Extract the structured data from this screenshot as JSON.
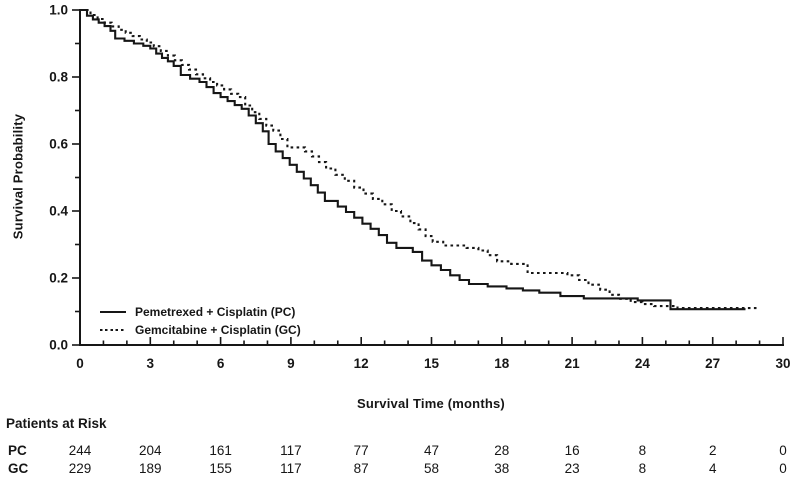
{
  "figure": {
    "background": "#ffffff",
    "ink_color": "#161616"
  },
  "chart_data": {
    "type": "line",
    "subtype": "kaplan-meier-step",
    "title": "",
    "xlabel": "Survival Time (months)",
    "ylabel": "Survival Probability",
    "xlim": [
      0,
      30
    ],
    "ylim": [
      0.0,
      1.0
    ],
    "x_major_ticks": [
      0,
      3,
      6,
      9,
      12,
      15,
      18,
      21,
      24,
      27,
      30
    ],
    "x_minor_step": 1,
    "y_major_ticks": [
      0.0,
      0.2,
      0.4,
      0.6,
      0.8,
      1.0
    ],
    "y_minor_step": 0.1,
    "grid": false,
    "legend_position": "inside-bottom-left",
    "series": [
      {
        "name": "Pemetrexed + Cisplatin (PC)",
        "style": "solid",
        "points": [
          [
            0,
            1.0
          ],
          [
            0.3,
            0.983
          ],
          [
            0.55,
            0.972
          ],
          [
            0.8,
            0.962
          ],
          [
            1.05,
            0.952
          ],
          [
            1.3,
            0.938
          ],
          [
            1.5,
            0.915
          ],
          [
            1.9,
            0.908
          ],
          [
            2.3,
            0.9
          ],
          [
            2.7,
            0.893
          ],
          [
            3.0,
            0.885
          ],
          [
            3.25,
            0.87
          ],
          [
            3.5,
            0.857
          ],
          [
            3.75,
            0.847
          ],
          [
            4.0,
            0.833
          ],
          [
            4.3,
            0.806
          ],
          [
            4.7,
            0.795
          ],
          [
            5.1,
            0.785
          ],
          [
            5.4,
            0.77
          ],
          [
            5.7,
            0.752
          ],
          [
            6.0,
            0.74
          ],
          [
            6.3,
            0.728
          ],
          [
            6.6,
            0.716
          ],
          [
            6.9,
            0.705
          ],
          [
            7.2,
            0.685
          ],
          [
            7.5,
            0.662
          ],
          [
            7.8,
            0.638
          ],
          [
            8.05,
            0.6
          ],
          [
            8.35,
            0.578
          ],
          [
            8.65,
            0.558
          ],
          [
            8.95,
            0.538
          ],
          [
            9.25,
            0.517
          ],
          [
            9.55,
            0.497
          ],
          [
            9.85,
            0.477
          ],
          [
            10.15,
            0.455
          ],
          [
            10.45,
            0.43
          ],
          [
            11.0,
            0.413
          ],
          [
            11.35,
            0.397
          ],
          [
            11.7,
            0.38
          ],
          [
            12.05,
            0.362
          ],
          [
            12.4,
            0.347
          ],
          [
            12.75,
            0.328
          ],
          [
            13.1,
            0.305
          ],
          [
            13.5,
            0.29
          ],
          [
            14.2,
            0.278
          ],
          [
            14.6,
            0.252
          ],
          [
            15.0,
            0.238
          ],
          [
            15.4,
            0.224
          ],
          [
            15.8,
            0.208
          ],
          [
            16.2,
            0.194
          ],
          [
            16.6,
            0.182
          ],
          [
            17.4,
            0.175
          ],
          [
            18.2,
            0.169
          ],
          [
            18.9,
            0.163
          ],
          [
            19.6,
            0.156
          ],
          [
            20.5,
            0.146
          ],
          [
            21.5,
            0.139
          ],
          [
            23.8,
            0.133
          ],
          [
            25.2,
            0.107
          ],
          [
            28.4,
            0.107
          ]
        ]
      },
      {
        "name": "Gemcitabine + Cisplatin (GC)",
        "style": "dotted",
        "points": [
          [
            0,
            1.0
          ],
          [
            0.45,
            0.985
          ],
          [
            0.75,
            0.973
          ],
          [
            1.05,
            0.962
          ],
          [
            1.35,
            0.951
          ],
          [
            1.65,
            0.941
          ],
          [
            1.95,
            0.932
          ],
          [
            2.25,
            0.922
          ],
          [
            2.55,
            0.912
          ],
          [
            2.85,
            0.903
          ],
          [
            3.15,
            0.892
          ],
          [
            3.45,
            0.878
          ],
          [
            3.75,
            0.864
          ],
          [
            4.05,
            0.85
          ],
          [
            4.35,
            0.836
          ],
          [
            4.65,
            0.822
          ],
          [
            4.95,
            0.808
          ],
          [
            5.25,
            0.796
          ],
          [
            5.55,
            0.785
          ],
          [
            5.85,
            0.775
          ],
          [
            6.15,
            0.763
          ],
          [
            6.45,
            0.75
          ],
          [
            6.75,
            0.74
          ],
          [
            7.05,
            0.715
          ],
          [
            7.35,
            0.695
          ],
          [
            7.65,
            0.675
          ],
          [
            7.95,
            0.655
          ],
          [
            8.25,
            0.64
          ],
          [
            8.55,
            0.615
          ],
          [
            8.85,
            0.59
          ],
          [
            9.6,
            0.578
          ],
          [
            9.9,
            0.563
          ],
          [
            10.2,
            0.546
          ],
          [
            10.5,
            0.527
          ],
          [
            10.9,
            0.508
          ],
          [
            11.3,
            0.49
          ],
          [
            11.7,
            0.47
          ],
          [
            12.1,
            0.452
          ],
          [
            12.5,
            0.436
          ],
          [
            12.9,
            0.42
          ],
          [
            13.3,
            0.4
          ],
          [
            13.7,
            0.384
          ],
          [
            14.1,
            0.364
          ],
          [
            14.45,
            0.345
          ],
          [
            14.75,
            0.325
          ],
          [
            15.05,
            0.308
          ],
          [
            15.5,
            0.297
          ],
          [
            16.5,
            0.29
          ],
          [
            17.0,
            0.282
          ],
          [
            17.4,
            0.268
          ],
          [
            17.8,
            0.25
          ],
          [
            18.4,
            0.242
          ],
          [
            19.1,
            0.215
          ],
          [
            20.8,
            0.208
          ],
          [
            21.3,
            0.194
          ],
          [
            21.7,
            0.18
          ],
          [
            22.2,
            0.165
          ],
          [
            22.6,
            0.15
          ],
          [
            23.0,
            0.138
          ],
          [
            23.5,
            0.128
          ],
          [
            24.0,
            0.122
          ],
          [
            24.5,
            0.116
          ],
          [
            25.5,
            0.11
          ],
          [
            29.0,
            0.11
          ]
        ]
      }
    ]
  },
  "risk_table": {
    "heading": "Patients at Risk",
    "times": [
      0,
      3,
      6,
      9,
      12,
      15,
      18,
      21,
      24,
      27,
      30
    ],
    "rows": [
      {
        "label": "PC",
        "counts": [
          244,
          204,
          161,
          117,
          77,
          47,
          28,
          16,
          8,
          2,
          0
        ]
      },
      {
        "label": "GC",
        "counts": [
          229,
          189,
          155,
          117,
          87,
          58,
          38,
          23,
          8,
          4,
          0
        ]
      }
    ]
  }
}
